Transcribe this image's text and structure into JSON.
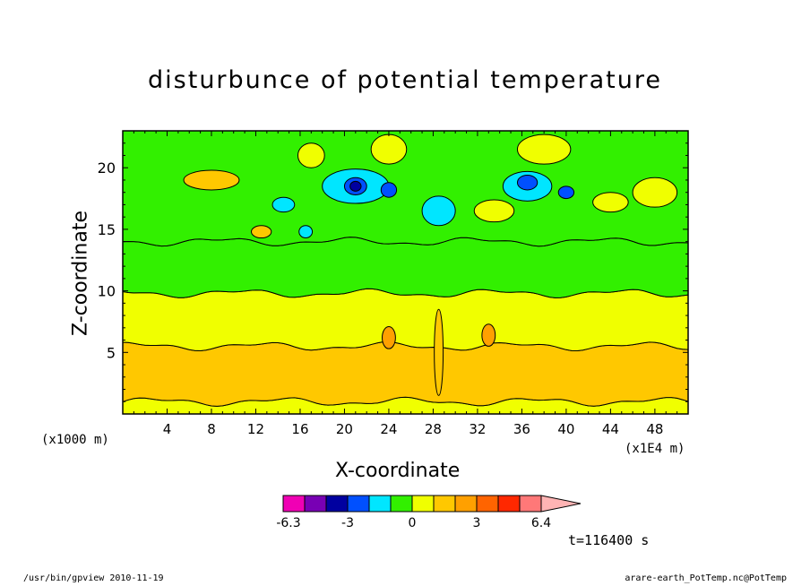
{
  "chart_data": {
    "type": "heatmap",
    "title": "disturbunce of potential temperature",
    "xlabel": "X-coordinate",
    "ylabel": "Z-coordinate",
    "x_unit": "(x1E4 m)",
    "y_unit": "(x1000 m)",
    "xlim": [
      0,
      51
    ],
    "ylim": [
      0,
      23
    ],
    "x_ticks": [
      4,
      8,
      12,
      16,
      20,
      24,
      28,
      32,
      36,
      40,
      44,
      48
    ],
    "y_ticks": [
      5,
      10,
      15,
      20
    ],
    "time_label": "t=116400 s",
    "colorbar": {
      "labels": [
        "-6.3",
        "-3",
        "0",
        "3",
        "6.4"
      ],
      "colors": [
        "#f000b4",
        "#7800b4",
        "#0000a0",
        "#0050ff",
        "#00e6ff",
        "#32f000",
        "#f0ff00",
        "#ffc800",
        "#ffa000",
        "#ff6400",
        "#ff2800",
        "#ff7878",
        "#ffb4b4"
      ]
    },
    "bands": [
      {
        "z_top": 1.0,
        "value": "0 to 0.5",
        "color": "#f0ff00"
      },
      {
        "z_top": 5.5,
        "value": "0.5 to 1.5",
        "color": "#ffc800"
      },
      {
        "z_top": 9.8,
        "value": "0 to 0.5",
        "color": "#f0ff00"
      },
      {
        "z_top": 14.0,
        "value": "-0.5 to 0",
        "color": "#32f000"
      },
      {
        "z_top": 23.0,
        "value": "mixed",
        "color": "#32f000"
      }
    ]
  },
  "footer": {
    "left": "/usr/bin/gpview  2010-11-19",
    "right": "arare-earth_PotTemp.nc@PotTemp"
  }
}
